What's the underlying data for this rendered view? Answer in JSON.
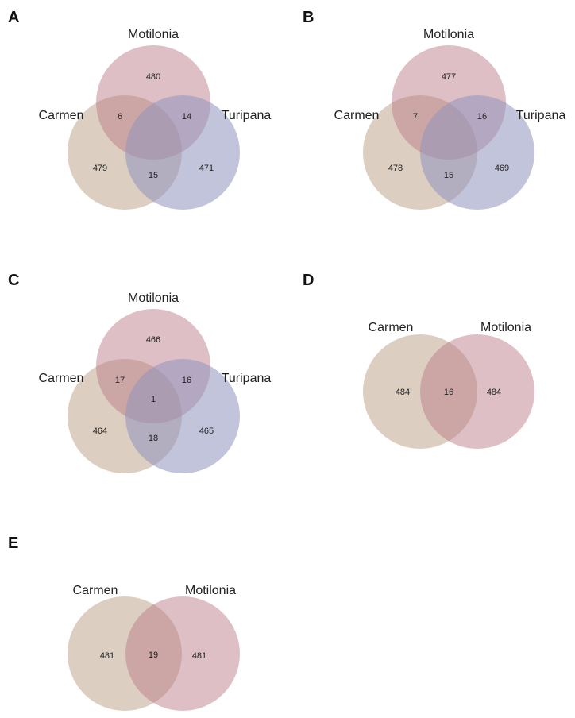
{
  "colors": {
    "carmen": "#c0a78e",
    "motilonia": "#b97a86",
    "turipana": "#8f93bd"
  },
  "panels": [
    {
      "letter": "A",
      "type": "venn3",
      "sets": [
        "Motilonia",
        "Carmen",
        "Turipana"
      ],
      "counts": {
        "motilonia_only": "480",
        "carmen_motilonia": "6",
        "motilonia_turipana": "14",
        "carmen_only": "479",
        "carmen_turipana": "15",
        "turipana_only": "471",
        "all": ""
      }
    },
    {
      "letter": "B",
      "type": "venn3",
      "sets": [
        "Motilonia",
        "Carmen",
        "Turipana"
      ],
      "counts": {
        "motilonia_only": "477",
        "carmen_motilonia": "7",
        "motilonia_turipana": "16",
        "carmen_only": "478",
        "carmen_turipana": "15",
        "turipana_only": "469",
        "all": ""
      }
    },
    {
      "letter": "C",
      "type": "venn3",
      "sets": [
        "Motilonia",
        "Carmen",
        "Turipana"
      ],
      "counts": {
        "motilonia_only": "466",
        "carmen_motilonia": "17",
        "motilonia_turipana": "16",
        "carmen_only": "464",
        "carmen_turipana": "18",
        "turipana_only": "465",
        "all": "1"
      }
    },
    {
      "letter": "D",
      "type": "venn2",
      "sets": [
        "Carmen",
        "Motilonia"
      ],
      "counts": {
        "left_only": "484",
        "both": "16",
        "right_only": "484"
      }
    },
    {
      "letter": "E",
      "type": "venn2",
      "sets": [
        "Carmen",
        "Motilonia"
      ],
      "counts": {
        "left_only": "481",
        "both": "19",
        "right_only": "481"
      }
    }
  ]
}
